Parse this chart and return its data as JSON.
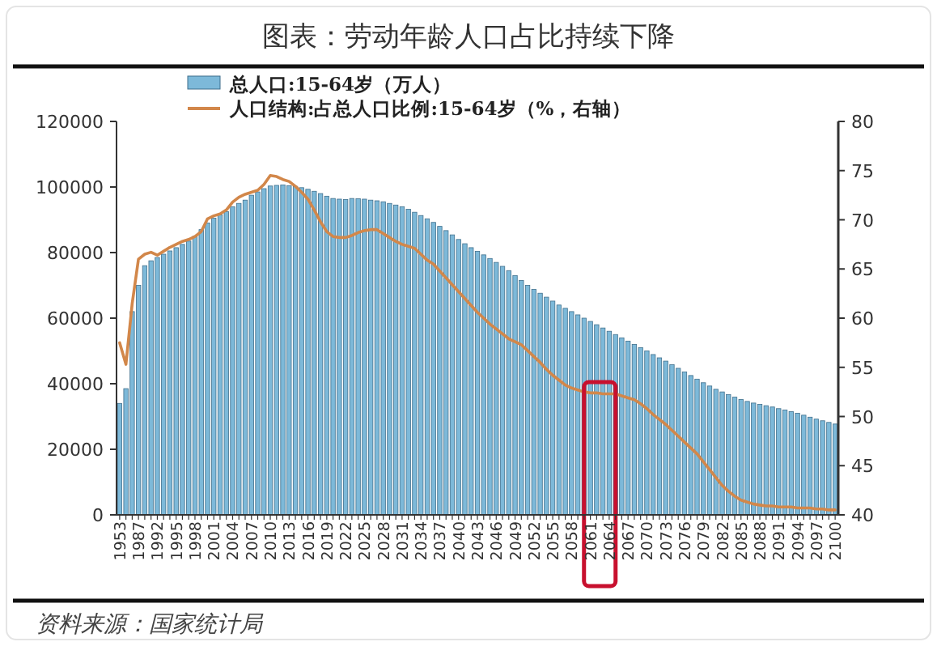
{
  "chart_data": {
    "type": "bar",
    "title": "图表：劳动年龄人口占比持续下降",
    "annotations": [
      "资料来源：国家统计局"
    ],
    "categories": [
      "1953",
      null,
      null,
      "1987",
      null,
      null,
      "1992",
      null,
      null,
      "1995",
      null,
      null,
      "1998",
      null,
      null,
      "2001",
      null,
      null,
      "2004",
      null,
      null,
      "2007",
      null,
      null,
      "2010",
      null,
      null,
      "2013",
      null,
      null,
      "2016",
      null,
      null,
      "2019",
      null,
      null,
      "2022",
      null,
      null,
      "2025",
      null,
      null,
      "2028",
      null,
      null,
      "2031",
      null,
      null,
      "2034",
      null,
      null,
      "2037",
      null,
      null,
      "2040",
      null,
      null,
      "2043",
      null,
      null,
      "2046",
      null,
      null,
      "2049",
      null,
      null,
      "2052",
      null,
      null,
      "2055",
      null,
      null,
      "2058",
      null,
      null,
      "2061",
      null,
      null,
      "2064",
      null,
      null,
      "2067",
      null,
      null,
      "2070",
      null,
      null,
      "2073",
      null,
      null,
      "2076",
      null,
      null,
      "2079",
      null,
      null,
      "2082",
      null,
      null,
      "2085",
      null,
      null,
      "2088",
      null,
      null,
      "2091",
      null,
      null,
      "2094",
      null,
      null,
      "2097",
      null,
      null,
      "2100"
    ],
    "series": [
      {
        "name": "总人口:15-64岁（万人）",
        "color": "#7db9d9",
        "values": [
          34000,
          38500,
          62000,
          70000,
          76000,
          77500,
          78500,
          79500,
          80500,
          81500,
          82500,
          83500,
          85000,
          87000,
          89000,
          90500,
          91500,
          92500,
          94000,
          95000,
          96000,
          97500,
          98500,
          99500,
          100300,
          100500,
          100600,
          100400,
          100200,
          99800,
          99300,
          98700,
          98000,
          97200,
          96500,
          96300,
          96200,
          96500,
          96400,
          96300,
          96000,
          95800,
          95500,
          95000,
          94500,
          94000,
          93200,
          92300,
          91300,
          90300,
          89200,
          88000,
          86700,
          85400,
          84000,
          82700,
          81500,
          80400,
          79300,
          78200,
          77000,
          75800,
          74500,
          73000,
          71500,
          70000,
          68800,
          67600,
          66400,
          65200,
          64000,
          63000,
          62000,
          61000,
          60000,
          59000,
          58000,
          57000,
          56000,
          55000,
          54000,
          53000,
          52000,
          51000,
          50000,
          48900,
          47900,
          46900,
          45800,
          44700,
          43600,
          42500,
          41400,
          40300,
          39300,
          38300,
          37500,
          36700,
          35900,
          35200,
          34600,
          34100,
          33700,
          33300,
          32900,
          32400,
          32000,
          31500,
          31000,
          30400,
          29800,
          29200,
          28700,
          28200,
          27700
        ]
      },
      {
        "name": "人口结构:占总人口比例:15-64岁（%，右轴）",
        "type": "line",
        "axis": "y2",
        "color": "#d2874a",
        "values": [
          57.5,
          55.3,
          61.5,
          66.0,
          66.5,
          66.7,
          66.4,
          66.8,
          67.2,
          67.5,
          67.8,
          68.0,
          68.3,
          68.8,
          70.1,
          70.4,
          70.6,
          71.0,
          71.8,
          72.3,
          72.6,
          72.8,
          73.0,
          73.6,
          74.5,
          74.4,
          74.1,
          73.9,
          73.4,
          72.8,
          72.1,
          71.0,
          69.8,
          68.8,
          68.3,
          68.2,
          68.2,
          68.4,
          68.7,
          68.9,
          69.0,
          69.0,
          68.6,
          68.2,
          67.8,
          67.5,
          67.3,
          67.1,
          66.5,
          65.9,
          65.5,
          64.8,
          64.1,
          63.4,
          62.7,
          62.0,
          61.3,
          60.6,
          60.0,
          59.4,
          58.9,
          58.4,
          57.9,
          57.6,
          57.3,
          56.7,
          56.1,
          55.5,
          54.8,
          54.2,
          53.7,
          53.2,
          52.9,
          52.7,
          52.5,
          52.4,
          52.4,
          52.3,
          52.3,
          52.3,
          52.1,
          51.9,
          51.7,
          51.3,
          50.8,
          50.2,
          49.7,
          49.2,
          48.6,
          48.0,
          47.4,
          46.8,
          46.2,
          45.4,
          44.6,
          43.8,
          43.0,
          42.4,
          41.9,
          41.5,
          41.3,
          41.1,
          41.0,
          40.9,
          40.9,
          40.8,
          40.8,
          40.8,
          40.7,
          40.7,
          40.7,
          40.6,
          40.6,
          40.5,
          40.5
        ]
      }
    ],
    "ylim": [
      0,
      120000
    ],
    "yticks": [
      0,
      20000,
      40000,
      60000,
      80000,
      100000,
      120000
    ],
    "y2lim": [
      40,
      80
    ],
    "y2ticks": [
      40,
      45,
      50,
      55,
      60,
      65,
      70,
      75,
      80
    ],
    "grid": false,
    "legend": "top left"
  }
}
